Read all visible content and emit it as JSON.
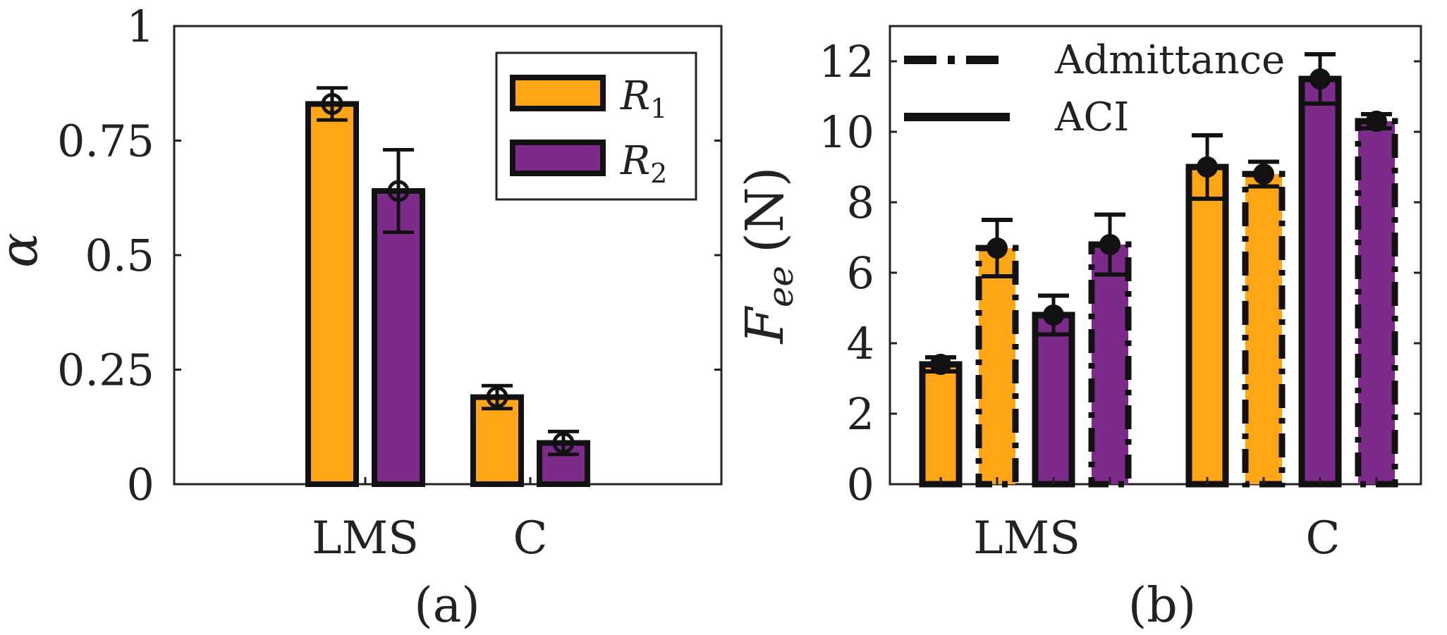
{
  "chart_data": [
    {
      "type": "bar",
      "panel_label": "(a)",
      "ylabel": "α",
      "ylim": [
        0,
        1
      ],
      "yticks": [
        0,
        0.25,
        0.5,
        0.75,
        1
      ],
      "ytick_labels": [
        "0",
        "0.25",
        "0.5",
        "0.75",
        "1"
      ],
      "categories": [
        "LMS",
        "C"
      ],
      "series": [
        {
          "name": "R1",
          "name_base": "R",
          "name_sub": "1",
          "color": "#FFA617",
          "values": [
            0.83,
            0.19
          ],
          "errors": [
            0.035,
            0.025
          ]
        },
        {
          "name": "R2",
          "name_base": "R",
          "name_sub": "2",
          "color": "#7D2B8B",
          "values": [
            0.64,
            0.09
          ],
          "errors": [
            0.09,
            0.025
          ]
        }
      ],
      "legend_position": "top-right"
    },
    {
      "type": "bar",
      "panel_label": "(b)",
      "ylabel_base": "F",
      "ylabel_sub": "ee",
      "ylabel_unit": "(N)",
      "ylim": [
        0,
        13
      ],
      "yticks": [
        0,
        2,
        4,
        6,
        8,
        10,
        12
      ],
      "ytick_labels": [
        "0",
        "2",
        "4",
        "6",
        "8",
        "10",
        "12"
      ],
      "categories": [
        "LMS",
        "C"
      ],
      "series": [
        {
          "name": "R1 ACI",
          "robot": "R1",
          "method": "ACI",
          "color": "#FFA617",
          "values": [
            3.4,
            9.0
          ],
          "errors": [
            0.2,
            0.9
          ]
        },
        {
          "name": "R1 Admittance",
          "robot": "R1",
          "method": "Admittance",
          "color": "#FFA617",
          "values": [
            6.7,
            8.8
          ],
          "errors": [
            0.8,
            0.35
          ]
        },
        {
          "name": "R2 ACI",
          "robot": "R2",
          "method": "ACI",
          "color": "#7D2B8B",
          "values": [
            4.8,
            11.5
          ],
          "errors": [
            0.55,
            0.7
          ]
        },
        {
          "name": "R2 Admittance",
          "robot": "R2",
          "method": "Admittance",
          "color": "#7D2B8B",
          "values": [
            6.8,
            10.3
          ],
          "errors": [
            0.85,
            0.2
          ]
        }
      ],
      "legend": [
        {
          "label": "Admittance",
          "style": "dash-dot"
        },
        {
          "label": "ACI",
          "style": "solid"
        }
      ],
      "legend_position": "top-left"
    }
  ]
}
